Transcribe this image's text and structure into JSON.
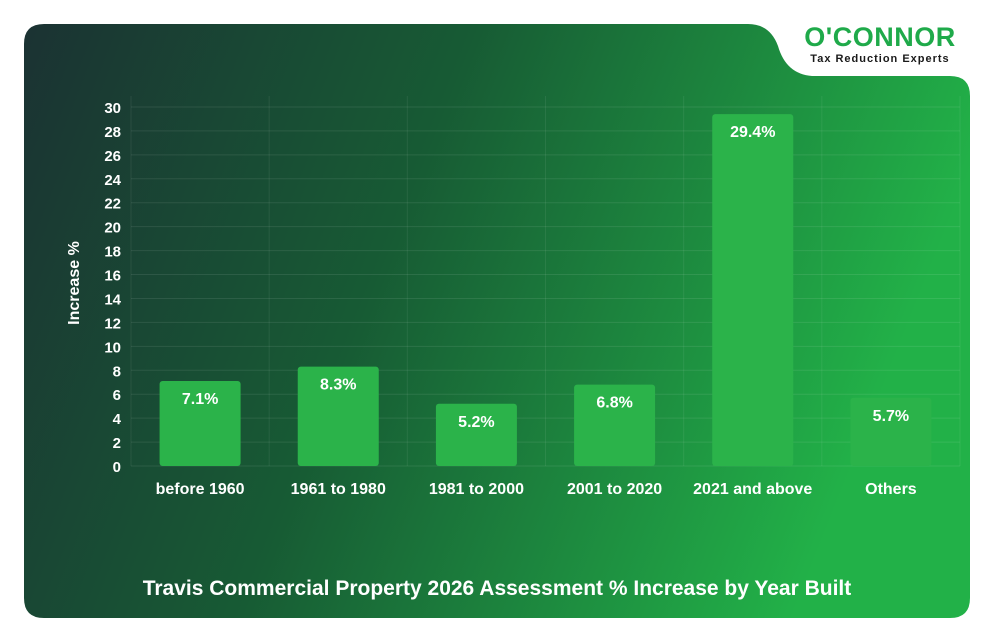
{
  "brand": {
    "logo_text": "O'CONNOR",
    "tagline": "Tax Reduction Experts"
  },
  "colors": {
    "bar": "#2bb34a",
    "panel_dark": "#1b3233",
    "panel_bright": "#22b148",
    "logo_green": "#1faa4a",
    "text": "#ffffff"
  },
  "chart_data": {
    "type": "bar",
    "title": "Travis Commercial Property 2026 Assessment % Increase by Year Built",
    "xlabel": "",
    "ylabel": "Increase %",
    "ylim": [
      0,
      30
    ],
    "yticks": [
      0,
      2,
      4,
      6,
      8,
      10,
      12,
      14,
      16,
      18,
      20,
      22,
      24,
      26,
      28,
      30
    ],
    "categories": [
      "before 1960",
      "1961 to 1980",
      "1981 to 2000",
      "2001 to 2020",
      "2021 and above",
      "Others"
    ],
    "values": [
      7.1,
      8.3,
      5.2,
      6.8,
      29.4,
      5.7
    ],
    "data_labels": [
      "7.1%",
      "8.3%",
      "5.2%",
      "6.8%",
      "29.4%",
      "5.7%"
    ],
    "grid": true,
    "legend": "none"
  }
}
